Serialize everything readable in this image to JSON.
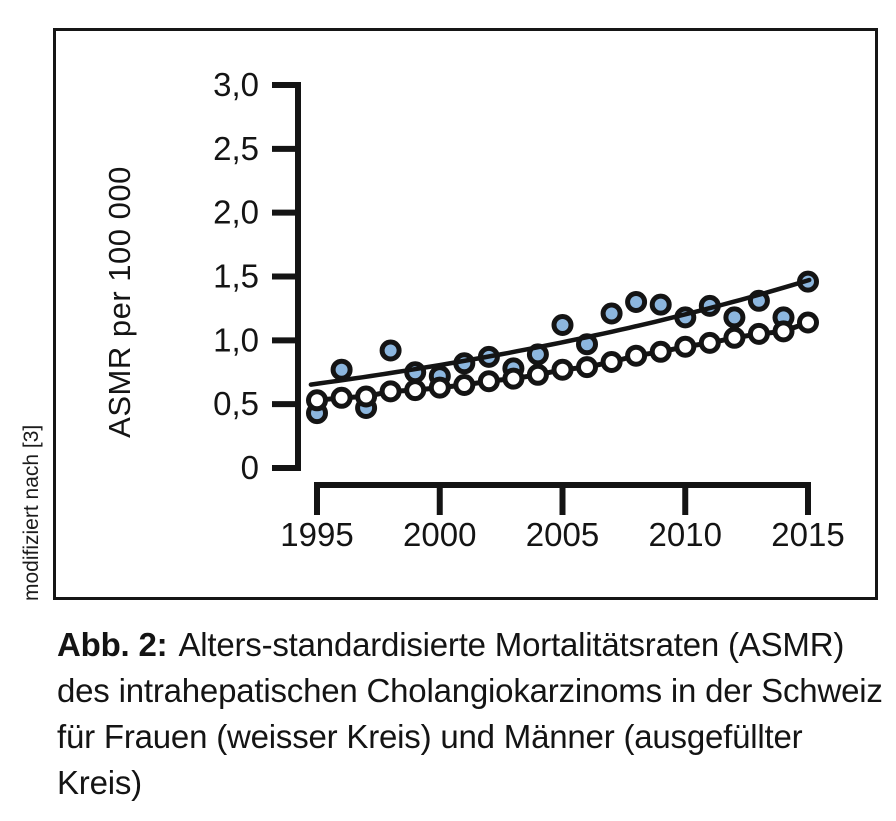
{
  "side_note": "modifiziert nach [3]",
  "caption": {
    "label": "Abb. 2:",
    "lines": [
      "Alters-standardisierte Mortalitätsraten (ASMR)",
      "des intrahepatischen Cholangiokarzinoms in der Schweiz",
      "für Frauen (weisser Kreis) und Männer (ausgefüllter",
      "Kreis)"
    ]
  },
  "colors": {
    "ink": "#141414",
    "men_marker_fill": "#8cb6de",
    "women_marker_fill": "#ffffff"
  },
  "chart_data": {
    "type": "scatter",
    "title": "",
    "xlabel": "",
    "ylabel": "ASMR per 100 000",
    "xlim": [
      1995,
      2015
    ],
    "ylim": [
      0,
      3.0
    ],
    "xticks": [
      1995,
      2000,
      2005,
      2010,
      2015
    ],
    "yticks": [
      0,
      0.5,
      1.0,
      1.5,
      2.0,
      2.5,
      3.0
    ],
    "ytick_labels": [
      "0",
      "0,5",
      "1,0",
      "1,5",
      "2,0",
      "2,5",
      "3,0"
    ],
    "grid": false,
    "legend_position": "none (series explained in caption)",
    "years": [
      1995,
      1996,
      1997,
      1998,
      1999,
      2000,
      2001,
      2002,
      2003,
      2004,
      2005,
      2006,
      2007,
      2008,
      2009,
      2010,
      2011,
      2012,
      2013,
      2014,
      2015
    ],
    "series": [
      {
        "name": "Männer (ausgefüllter Kreis)",
        "marker": "filled-circle",
        "values": [
          0.43,
          0.77,
          0.47,
          0.92,
          0.75,
          0.72,
          0.82,
          0.87,
          0.78,
          0.89,
          1.12,
          0.97,
          1.21,
          1.3,
          1.28,
          1.18,
          1.27,
          1.18,
          1.31,
          1.18,
          1.46
        ]
      },
      {
        "name": "Frauen (weisser Kreis)",
        "marker": "open-circle",
        "values": [
          0.53,
          0.55,
          0.56,
          0.6,
          0.61,
          0.63,
          0.65,
          0.68,
          0.7,
          0.73,
          0.77,
          0.79,
          0.83,
          0.88,
          0.91,
          0.95,
          0.98,
          1.02,
          1.05,
          1.07,
          1.14
        ]
      }
    ],
    "trend_line": {
      "applies_to": "Männer (ausgefüllter Kreis)",
      "shape": "exponential",
      "value_1995": 0.66,
      "value_2015": 1.47
    }
  }
}
